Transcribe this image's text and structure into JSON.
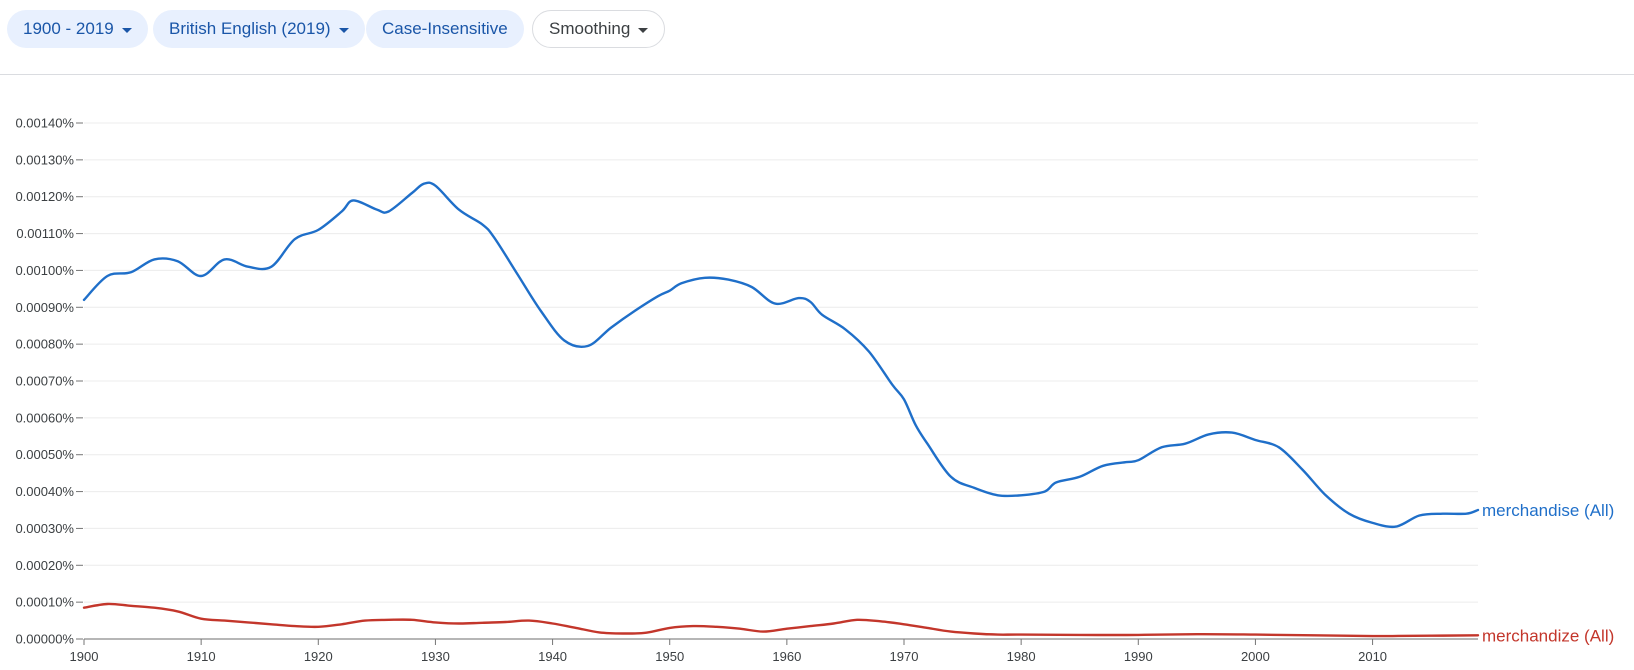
{
  "toolbar": {
    "year_range": "1900 - 2019",
    "corpus": "British English (2019)",
    "case": "Case-Insensitive",
    "smoothing": "Smoothing"
  },
  "colors": {
    "chip_bg": "#e8f0fe",
    "chip_text": "#1a56a8",
    "grid": "#ececec",
    "axis": "#9e9e9e"
  },
  "chart_data": {
    "type": "line",
    "title": "",
    "xlabel": "",
    "ylabel": "",
    "xlim": [
      1900,
      2019
    ],
    "ylim": [
      0,
      0.0014
    ],
    "x_ticks": [
      1900,
      1910,
      1920,
      1930,
      1940,
      1950,
      1960,
      1970,
      1980,
      1990,
      2000,
      2010
    ],
    "x_tick_labels": [
      "1900",
      "1910",
      "1920",
      "1930",
      "1940",
      "1950",
      "1960",
      "1970",
      "1980",
      "1990",
      "2000",
      "2010"
    ],
    "y_ticks": [
      0,
      0.0001,
      0.0002,
      0.0003,
      0.0004,
      0.0005,
      0.0006,
      0.0007,
      0.0008,
      0.0009,
      0.001,
      0.0011,
      0.0012,
      0.0013,
      0.0014
    ],
    "y_tick_labels": [
      "0.00000%",
      "0.00010%",
      "0.00020%",
      "0.00030%",
      "0.00040%",
      "0.00050%",
      "0.00060%",
      "0.00070%",
      "0.00080%",
      "0.00090%",
      "0.00100%",
      "0.00110%",
      "0.00120%",
      "0.00130%",
      "0.00140%"
    ],
    "grid": true,
    "legend": "end-of-line labels",
    "series": [
      {
        "name": "merchandise (All)",
        "color": "#1f6fc9",
        "points": [
          [
            1900,
            0.00092
          ],
          [
            1902,
            0.000985
          ],
          [
            1904,
            0.000995
          ],
          [
            1906,
            0.00103
          ],
          [
            1908,
            0.001025
          ],
          [
            1910,
            0.000985
          ],
          [
            1912,
            0.00103
          ],
          [
            1914,
            0.00101
          ],
          [
            1916,
            0.00101
          ],
          [
            1918,
            0.001085
          ],
          [
            1920,
            0.00111
          ],
          [
            1922,
            0.00116
          ],
          [
            1923,
            0.00119
          ],
          [
            1925,
            0.001165
          ],
          [
            1926,
            0.00116
          ],
          [
            1928,
            0.00121
          ],
          [
            1929,
            0.001235
          ],
          [
            1930,
            0.00123
          ],
          [
            1932,
            0.001165
          ],
          [
            1934,
            0.001125
          ],
          [
            1935,
            0.00109
          ],
          [
            1937,
            0.00099
          ],
          [
            1939,
            0.00089
          ],
          [
            1941,
            0.00081
          ],
          [
            1943,
            0.000795
          ],
          [
            1945,
            0.000845
          ],
          [
            1947,
            0.00089
          ],
          [
            1949,
            0.00093
          ],
          [
            1950,
            0.000945
          ],
          [
            1951,
            0.000965
          ],
          [
            1953,
            0.00098
          ],
          [
            1955,
            0.000975
          ],
          [
            1957,
            0.000955
          ],
          [
            1959,
            0.00091
          ],
          [
            1961,
            0.000925
          ],
          [
            1962,
            0.000915
          ],
          [
            1963,
            0.00088
          ],
          [
            1965,
            0.00084
          ],
          [
            1967,
            0.00078
          ],
          [
            1969,
            0.00069
          ],
          [
            1970,
            0.00065
          ],
          [
            1971,
            0.00058
          ],
          [
            1972,
            0.00053
          ],
          [
            1974,
            0.00044
          ],
          [
            1976,
            0.00041
          ],
          [
            1978,
            0.00039
          ],
          [
            1980,
            0.00039
          ],
          [
            1982,
            0.0004
          ],
          [
            1983,
            0.000425
          ],
          [
            1985,
            0.00044
          ],
          [
            1987,
            0.00047
          ],
          [
            1989,
            0.00048
          ],
          [
            1990,
            0.000485
          ],
          [
            1992,
            0.00052
          ],
          [
            1994,
            0.00053
          ],
          [
            1996,
            0.000555
          ],
          [
            1998,
            0.00056
          ],
          [
            2000,
            0.00054
          ],
          [
            2002,
            0.00052
          ],
          [
            2004,
            0.00046
          ],
          [
            2006,
            0.00039
          ],
          [
            2008,
            0.00034
          ],
          [
            2010,
            0.000315
          ],
          [
            2012,
            0.000305
          ],
          [
            2014,
            0.000335
          ],
          [
            2016,
            0.00034
          ],
          [
            2018,
            0.00034
          ],
          [
            2019,
            0.00035
          ]
        ]
      },
      {
        "name": "merchandize (All)",
        "color": "#c3362b",
        "points": [
          [
            1900,
            8.5e-05
          ],
          [
            1902,
            9.5e-05
          ],
          [
            1904,
            9e-05
          ],
          [
            1906,
            8.5e-05
          ],
          [
            1908,
            7.5e-05
          ],
          [
            1910,
            5.5e-05
          ],
          [
            1912,
            5e-05
          ],
          [
            1914,
            4.5e-05
          ],
          [
            1916,
            4e-05
          ],
          [
            1918,
            3.5e-05
          ],
          [
            1920,
            3.3e-05
          ],
          [
            1922,
            4e-05
          ],
          [
            1924,
            5e-05
          ],
          [
            1926,
            5.2e-05
          ],
          [
            1928,
            5.2e-05
          ],
          [
            1930,
            4.5e-05
          ],
          [
            1932,
            4.2e-05
          ],
          [
            1934,
            4.4e-05
          ],
          [
            1936,
            4.6e-05
          ],
          [
            1938,
            5e-05
          ],
          [
            1940,
            4.2e-05
          ],
          [
            1942,
            3e-05
          ],
          [
            1944,
            1.8e-05
          ],
          [
            1946,
            1.5e-05
          ],
          [
            1948,
            1.7e-05
          ],
          [
            1950,
            3e-05
          ],
          [
            1952,
            3.5e-05
          ],
          [
            1954,
            3.3e-05
          ],
          [
            1956,
            2.8e-05
          ],
          [
            1958,
            2e-05
          ],
          [
            1960,
            2.8e-05
          ],
          [
            1962,
            3.5e-05
          ],
          [
            1964,
            4.2e-05
          ],
          [
            1966,
            5.2e-05
          ],
          [
            1968,
            4.8e-05
          ],
          [
            1970,
            4e-05
          ],
          [
            1972,
            3e-05
          ],
          [
            1974,
            2e-05
          ],
          [
            1976,
            1.5e-05
          ],
          [
            1978,
            1.2e-05
          ],
          [
            1980,
            1.2e-05
          ],
          [
            1985,
            1.1e-05
          ],
          [
            1990,
            1.1e-05
          ],
          [
            1995,
            1.3e-05
          ],
          [
            2000,
            1.2e-05
          ],
          [
            2005,
            1e-05
          ],
          [
            2010,
            8e-06
          ],
          [
            2015,
            9e-06
          ],
          [
            2019,
            1e-05
          ]
        ]
      }
    ]
  }
}
